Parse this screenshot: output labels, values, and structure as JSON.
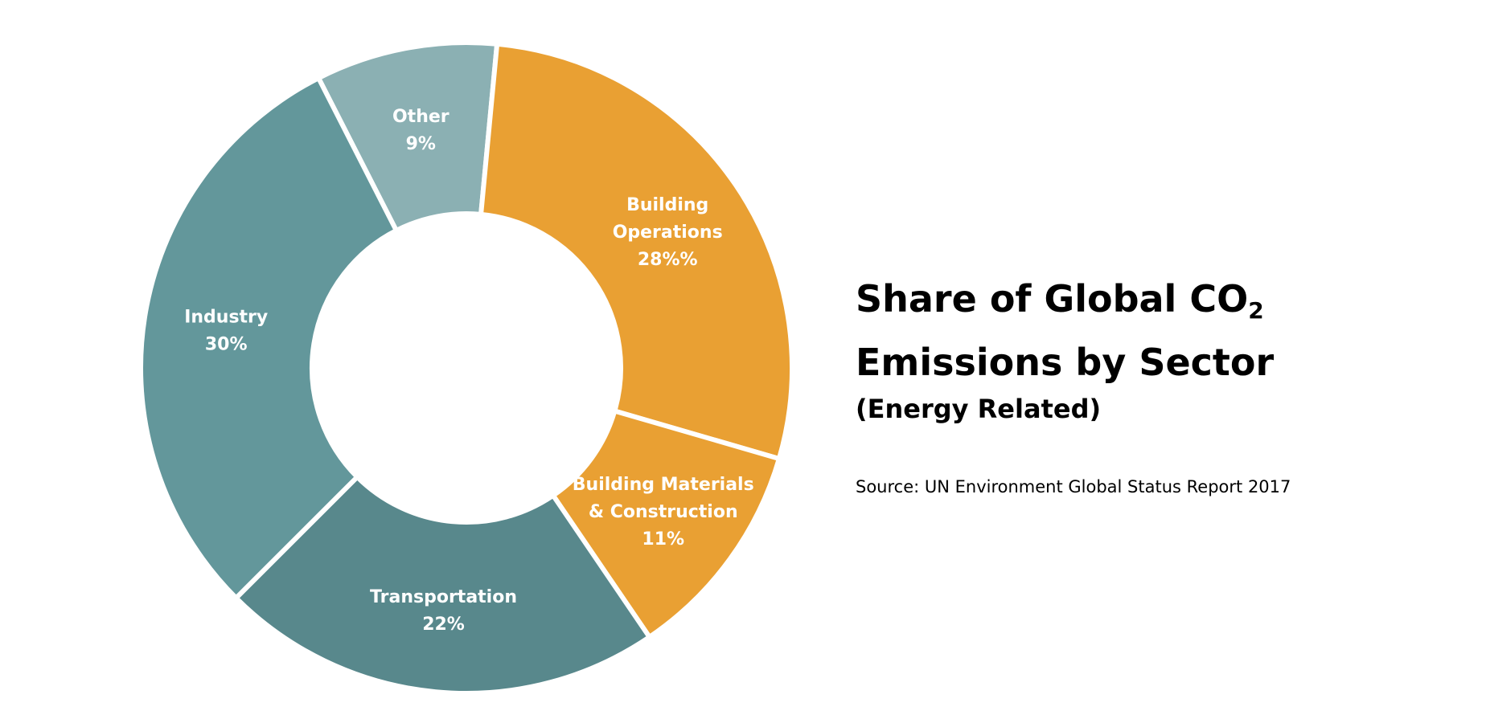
{
  "chart_data": {
    "type": "pie",
    "variant": "donut",
    "slices": [
      {
        "label": "Other",
        "pct_label": "9%",
        "value": 9,
        "color": "#8BB0B3"
      },
      {
        "label": "Building Operations",
        "pct_label": "28%%",
        "value": 28,
        "color": "#E9A033"
      },
      {
        "label": "Building Materials & Construction",
        "pct_label": "11%",
        "value": 11,
        "color": "#E9A033"
      },
      {
        "label": "Transportation",
        "pct_label": "22%",
        "value": 22,
        "color": "#58888C"
      },
      {
        "label": "Industry",
        "pct_label": "30%",
        "value": 30,
        "color": "#63979B"
      }
    ],
    "title_line1_prefix": "Share of Global CO",
    "title_line1_subscript": "2",
    "title_line2": "Emissions by Sector",
    "subtitle": "(Energy Related)",
    "source": "Source: UN Environment Global Status Report 2017",
    "legend": "none"
  },
  "colors": {
    "divider": "#ffffff",
    "background": "#ffffff",
    "label_text": "#ffffff"
  }
}
